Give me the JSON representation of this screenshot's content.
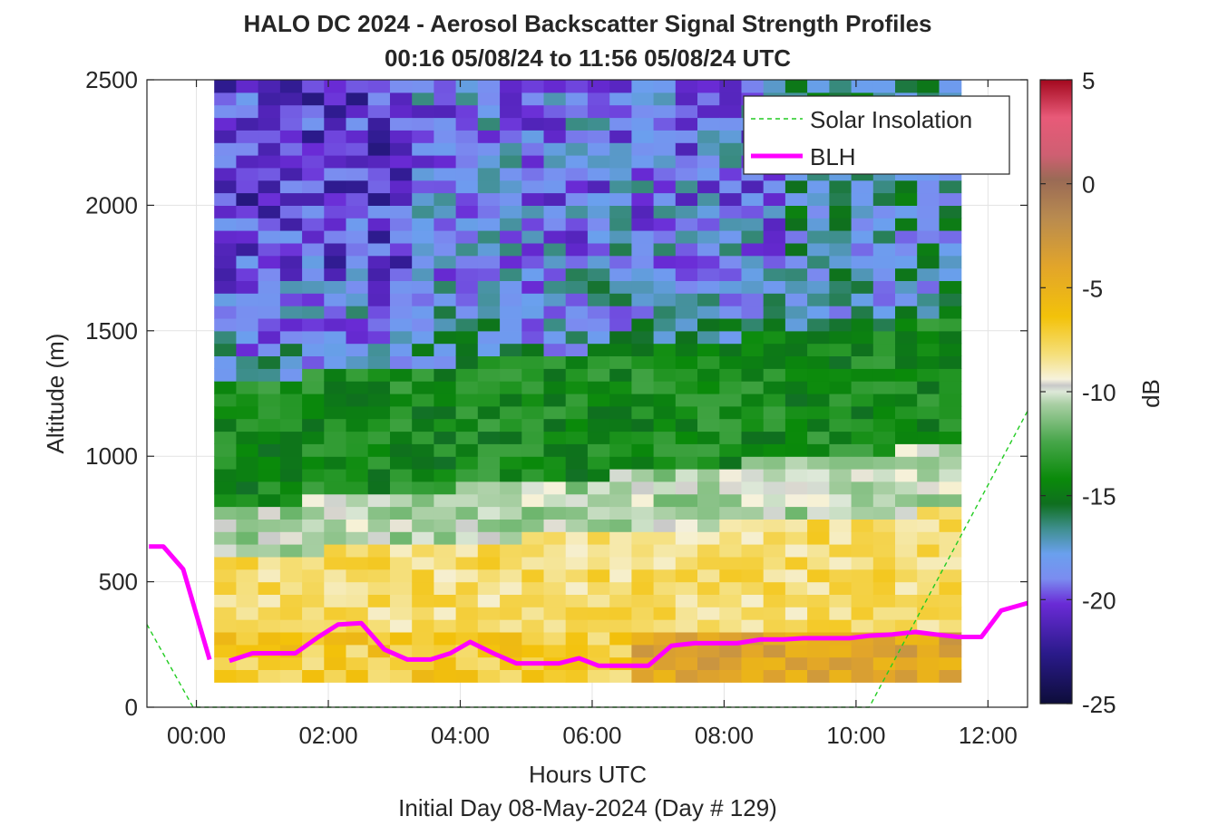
{
  "chart_data": {
    "type": "heatmap",
    "title": "HALO DC 2024 - Aerosol Backscatter Signal Strength Profiles",
    "subtitle": "00:16 05/08/24 to 11:56 05/08/24  UTC",
    "xlabel": "Hours UTC",
    "ylabel": "Altitude (m)",
    "footer": "Initial Day 08-May-2024 (Day # 129)",
    "xlim_hours": [
      -0.75,
      12.6
    ],
    "ylim": [
      0,
      2500
    ],
    "x_ticks": [
      "00:00",
      "02:00",
      "04:00",
      "06:00",
      "08:00",
      "10:00",
      "12:00"
    ],
    "y_ticks": [
      "0",
      "500",
      "1000",
      "1500",
      "2000",
      "2500"
    ],
    "grid": true,
    "colorbar": {
      "label": "dB",
      "range": [
        -25,
        5
      ],
      "ticks": [
        "5",
        "0",
        "-5",
        "-10",
        "-15",
        "-20",
        "-25"
      ]
    },
    "legend": {
      "placement": "top-right",
      "entries": [
        {
          "label": "Solar Insolation",
          "color": "#22cc22",
          "style": "dashed"
        },
        {
          "label": "BLH",
          "color": "#ff00ff",
          "style": "solid"
        }
      ]
    },
    "heatmap": {
      "x_start_hour": 0.27,
      "x_step_hour": 0.333,
      "y_start_m": 100,
      "y_step_m": 50,
      "value_units": "dB",
      "columns": 34,
      "rows": 48
    },
    "series": [
      {
        "name": "BLH",
        "color": "#ff00ff",
        "segments": [
          {
            "x": [
              -0.72,
              -0.5,
              -0.2,
              0.2
            ],
            "y": [
              640,
              640,
              550,
              190
            ]
          },
          {
            "x": [
              0.5,
              0.85,
              1.5,
              1.85,
              2.15,
              2.5,
              2.85,
              3.2,
              3.55,
              3.85,
              4.15,
              4.5,
              4.85,
              5.2,
              5.5,
              5.8,
              6.1,
              6.5,
              6.85,
              7.2,
              7.55,
              7.9,
              8.2,
              8.55,
              8.9,
              9.2,
              9.6,
              9.9,
              10.2,
              10.55,
              10.9,
              11.2,
              11.55,
              11.9,
              12.2,
              12.6
            ],
            "y": [
              185,
              215,
              215,
              280,
              330,
              335,
              230,
              190,
              190,
              215,
              260,
              215,
              175,
              175,
              175,
              195,
              165,
              165,
              165,
              245,
              255,
              255,
              255,
              270,
              270,
              275,
              275,
              275,
              285,
              290,
              300,
              290,
              280,
              280,
              385,
              415
            ]
          }
        ]
      },
      {
        "name": "Solar Insolation",
        "color": "#22cc22",
        "x": [
          -0.75,
          -0.05,
          10.2,
          12.6
        ],
        "y": [
          330,
          0,
          0,
          1180
        ]
      }
    ]
  }
}
